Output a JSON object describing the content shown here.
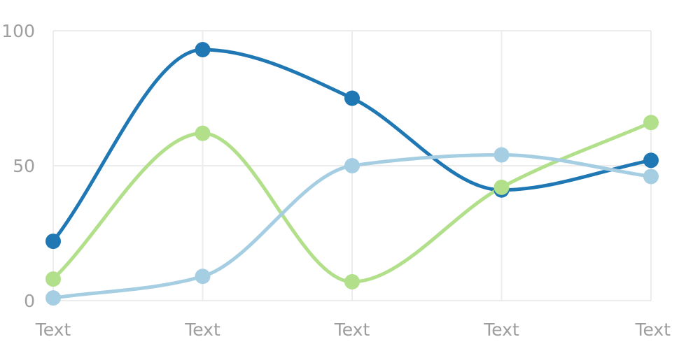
{
  "chart_data": {
    "type": "line",
    "curve": "smooth",
    "categories": [
      "Text",
      "Text",
      "Text",
      "Text",
      "Text"
    ],
    "ylim": [
      0,
      100
    ],
    "yticks": [
      0,
      50,
      100
    ],
    "grid": true,
    "series": [
      {
        "color": "#1f78b4",
        "values": [
          22,
          93,
          75,
          41,
          52
        ]
      },
      {
        "color": "#b2df8a",
        "values": [
          8,
          62,
          7,
          42,
          66
        ]
      },
      {
        "color": "#a6cee3",
        "values": [
          1,
          9,
          50,
          54,
          46
        ]
      }
    ]
  }
}
